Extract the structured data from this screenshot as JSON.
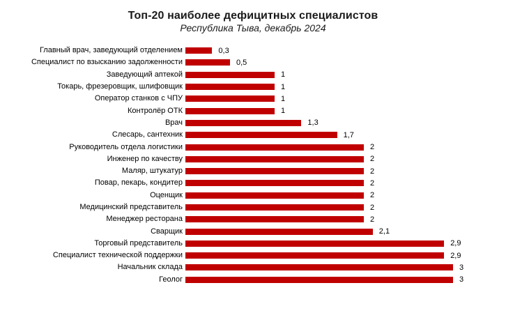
{
  "chart_data": {
    "type": "bar",
    "orientation": "horizontal",
    "title": "Топ-20 наиболее дефицитных специалистов",
    "subtitle": "Республика Тыва, декабрь 2024",
    "categories": [
      "Главный врач, заведующий отделением",
      "Специалист по взысканию задолженности",
      "Заведующий аптекой",
      "Токарь, фрезеровщик, шлифовщик",
      "Оператор станков с ЧПУ",
      "Контролёр ОТК",
      "Врач",
      "Слесарь, сантехник",
      "Руководитель отдела логистики",
      "Инженер по качеству",
      "Маляр, штукатур",
      "Повар, пекарь, кондитер",
      "Оценщик",
      "Медицинский представитель",
      "Менеджер ресторана",
      "Сварщик",
      "Торговый представитель",
      "Специалист технической поддержки",
      "Начальник склада",
      "Геолог"
    ],
    "values": [
      0.3,
      0.5,
      1,
      1,
      1,
      1,
      1.3,
      1.7,
      2,
      2,
      2,
      2,
      2,
      2,
      2,
      2.1,
      2.9,
      2.9,
      3,
      3
    ],
    "value_labels": [
      "0,3",
      "0,5",
      "1",
      "1",
      "1",
      "1",
      "1,3",
      "1,7",
      "2",
      "2",
      "2",
      "2",
      "2",
      "2",
      "2",
      "2,1",
      "2,9",
      "2,9",
      "3",
      "3"
    ],
    "xlim": [
      0,
      3
    ],
    "bar_color": "#c00000",
    "grid": false,
    "legend": false,
    "data_labels": "outside-end"
  }
}
